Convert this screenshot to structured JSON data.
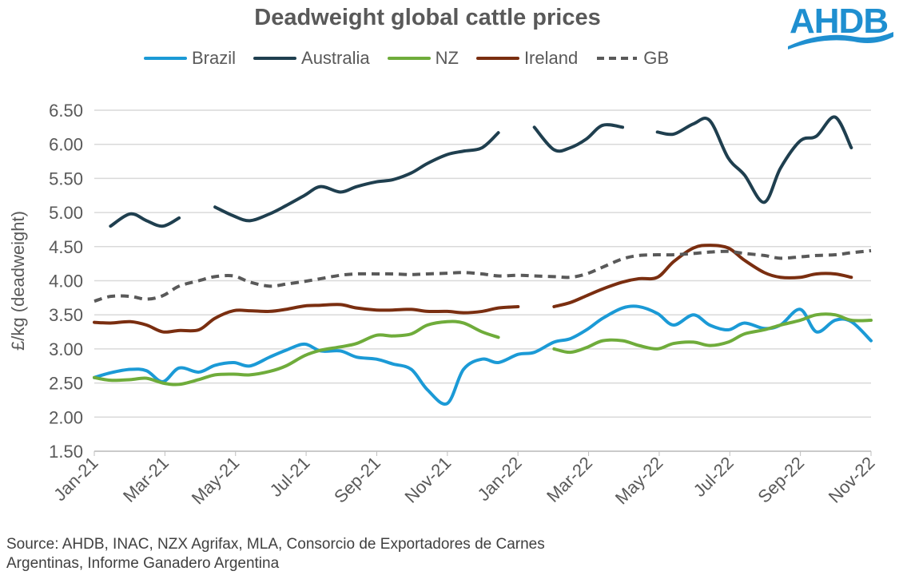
{
  "chart_data": {
    "type": "line",
    "title": "Deadweight global cattle prices",
    "ylabel": "£/kg (deadweight)",
    "xlabel": "",
    "ylim": [
      1.5,
      6.5
    ],
    "yticks": [
      "6.50",
      "6.00",
      "5.50",
      "5.00",
      "4.50",
      "4.00",
      "3.50",
      "3.00",
      "2.50",
      "2.00",
      "1.50"
    ],
    "xticks": [
      "Jan-21",
      "Mar-21",
      "May-21",
      "Jul-21",
      "Sep-21",
      "Nov-21",
      "Jan-22",
      "Mar-22",
      "May-22",
      "Jul-22",
      "Sep-22",
      "Nov-22"
    ],
    "xlim": [
      "2021-01-01",
      "2022-11-01"
    ],
    "grid": "horizontal",
    "legend_position": "top",
    "x": [
      "2021-01-01",
      "2021-01-15",
      "2021-02-01",
      "2021-02-15",
      "2021-03-01",
      "2021-03-15",
      "2021-04-01",
      "2021-04-15",
      "2021-05-01",
      "2021-05-15",
      "2021-06-01",
      "2021-06-15",
      "2021-07-01",
      "2021-07-15",
      "2021-08-01",
      "2021-08-15",
      "2021-09-01",
      "2021-09-15",
      "2021-10-01",
      "2021-10-15",
      "2021-11-01",
      "2021-11-15",
      "2021-12-01",
      "2021-12-15",
      "2022-01-01",
      "2022-01-15",
      "2022-02-01",
      "2022-02-15",
      "2022-03-01",
      "2022-03-15",
      "2022-04-01",
      "2022-04-15",
      "2022-05-01",
      "2022-05-15",
      "2022-06-01",
      "2022-06-15",
      "2022-07-01",
      "2022-07-15",
      "2022-08-01",
      "2022-08-15",
      "2022-09-01",
      "2022-09-15",
      "2022-10-01",
      "2022-10-15",
      "2022-11-01"
    ],
    "series": [
      {
        "name": "Brazil",
        "color": "#1b9ad6",
        "dash": false,
        "values": [
          2.58,
          2.65,
          2.7,
          2.68,
          2.52,
          2.72,
          2.66,
          2.76,
          2.8,
          2.75,
          2.88,
          2.98,
          3.07,
          2.97,
          2.97,
          2.88,
          2.85,
          2.78,
          2.7,
          2.4,
          2.2,
          2.7,
          2.85,
          2.8,
          2.92,
          2.95,
          3.1,
          3.15,
          3.28,
          3.45,
          3.6,
          3.62,
          3.52,
          3.35,
          3.5,
          3.35,
          3.28,
          3.38,
          3.3,
          3.35,
          3.58,
          3.25,
          3.42,
          3.4,
          3.12
        ]
      },
      {
        "name": "Australia",
        "color": "#1f3f4f",
        "dash": false,
        "values": [
          null,
          4.8,
          4.98,
          4.88,
          4.8,
          4.92,
          null,
          5.08,
          4.95,
          4.88,
          4.98,
          5.1,
          5.25,
          5.38,
          5.3,
          5.38,
          5.45,
          5.48,
          5.58,
          5.72,
          5.85,
          5.9,
          5.95,
          6.17,
          null,
          6.25,
          5.92,
          5.95,
          6.08,
          6.28,
          6.25,
          null,
          6.18,
          6.15,
          6.3,
          6.35,
          5.8,
          5.55,
          5.15,
          5.65,
          6.05,
          6.12,
          6.4,
          5.95,
          null
        ]
      },
      {
        "name": "NZ",
        "color": "#6fac3b",
        "dash": false,
        "values": [
          2.58,
          2.54,
          2.55,
          2.57,
          2.5,
          2.48,
          2.55,
          2.62,
          2.63,
          2.62,
          2.67,
          2.75,
          2.9,
          2.98,
          3.03,
          3.08,
          3.2,
          3.19,
          3.22,
          3.35,
          3.4,
          3.38,
          3.25,
          3.17,
          null,
          null,
          3.0,
          2.95,
          3.02,
          3.12,
          3.12,
          3.05,
          3.0,
          3.08,
          3.1,
          3.05,
          3.1,
          3.22,
          3.28,
          3.35,
          3.42,
          3.5,
          3.5,
          3.42,
          3.42
        ]
      },
      {
        "name": "Ireland",
        "color": "#7a2e10",
        "dash": false,
        "values": [
          3.39,
          3.38,
          3.4,
          3.35,
          3.25,
          3.27,
          3.28,
          3.45,
          3.56,
          3.56,
          3.55,
          3.58,
          3.63,
          3.64,
          3.65,
          3.6,
          3.57,
          3.57,
          3.58,
          3.55,
          3.55,
          3.53,
          3.55,
          3.6,
          3.62,
          null,
          3.62,
          3.68,
          3.78,
          3.88,
          3.98,
          4.03,
          4.05,
          4.28,
          4.48,
          4.52,
          4.48,
          4.3,
          4.12,
          4.05,
          4.05,
          4.1,
          4.1,
          4.05,
          null
        ]
      },
      {
        "name": "GB",
        "color": "#595959",
        "dash": true,
        "values": [
          3.7,
          3.77,
          3.77,
          3.73,
          3.78,
          3.92,
          4.0,
          4.06,
          4.07,
          3.98,
          3.92,
          3.95,
          3.99,
          4.03,
          4.08,
          4.1,
          4.1,
          4.1,
          4.09,
          4.1,
          4.11,
          4.12,
          4.1,
          4.07,
          4.08,
          4.07,
          4.06,
          4.05,
          4.1,
          4.2,
          4.32,
          4.37,
          4.38,
          4.38,
          4.4,
          4.42,
          4.43,
          4.4,
          4.37,
          4.33,
          4.35,
          4.37,
          4.38,
          4.41,
          4.44
        ]
      }
    ]
  },
  "source": {
    "line1": "Source: AHDB, INAC, NZX Agrifax, MLA, Consorcio de Exportadores de Carnes",
    "line2": "Argentinas, Informe Ganadero Argentina"
  },
  "logo": {
    "text": "AHDB",
    "color": "#1f8fd0"
  }
}
